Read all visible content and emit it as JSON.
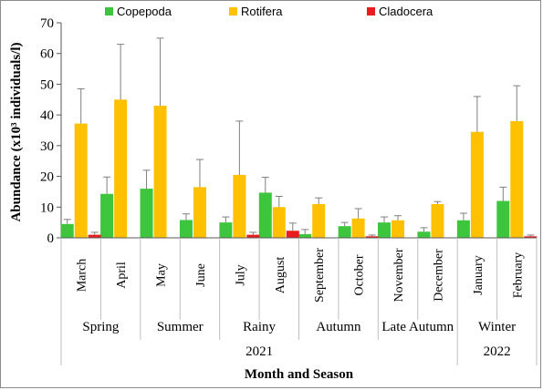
{
  "chart_data": {
    "type": "bar",
    "title": "",
    "xlabel": "Month and Season",
    "ylabel": "Abundance (x10³ individuals/l)",
    "ylim": [
      0,
      70
    ],
    "yticks": [
      0,
      10,
      20,
      30,
      40,
      50,
      60,
      70
    ],
    "grid": false,
    "legend_position": "top",
    "categories": [
      "March",
      "April",
      "May",
      "June",
      "July",
      "August",
      "September",
      "October",
      "November",
      "December",
      "January",
      "February"
    ],
    "series": [
      {
        "name": "Copepoda",
        "color": "#3dc53d",
        "values": [
          4.5,
          14.3,
          16.0,
          5.8,
          5.0,
          14.7,
          1.2,
          3.8,
          5.0,
          2.0,
          5.7,
          12.0
        ],
        "errors": [
          1.5,
          5.5,
          6.0,
          2.0,
          1.8,
          5.0,
          1.5,
          1.2,
          1.8,
          1.3,
          2.3,
          4.5
        ]
      },
      {
        "name": "Rotifera",
        "color": "#ffc000",
        "values": [
          37.2,
          45.0,
          43.0,
          16.5,
          20.5,
          10.0,
          11.0,
          6.3,
          5.7,
          11.0,
          34.5,
          38.0
        ],
        "errors": [
          11.3,
          18.0,
          22.0,
          9.0,
          17.5,
          3.5,
          2.0,
          3.2,
          1.5,
          0.8,
          11.5,
          11.5
        ]
      },
      {
        "name": "Cladocera",
        "color": "#e81e1e",
        "values": [
          1.0,
          null,
          null,
          null,
          1.0,
          2.3,
          null,
          0.5,
          null,
          null,
          null,
          0.5
        ],
        "errors": [
          0.8,
          null,
          null,
          null,
          0.8,
          2.5,
          null,
          0.4,
          null,
          null,
          null,
          0.4
        ]
      }
    ],
    "seasons": [
      {
        "label": "Spring",
        "span": 2
      },
      {
        "label": "Summer",
        "span": 2
      },
      {
        "label": "Rainy",
        "span": 2
      },
      {
        "label": "Autumn",
        "span": 2
      },
      {
        "label": "Late Autumn",
        "span": 2
      },
      {
        "label": "Winter",
        "span": 2
      }
    ],
    "years": [
      {
        "label": "2021",
        "span": 10
      },
      {
        "label": "2022",
        "span": 2
      }
    ]
  }
}
